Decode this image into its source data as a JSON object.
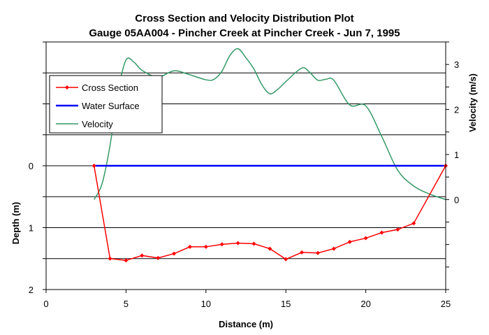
{
  "chart_data": {
    "type": "line",
    "title": "Cross Section and Velocity Distribution Plot",
    "subtitle": "Gauge 05AA004 - Pincher Creek at Pincher Creek - Jun 7, 1995",
    "xlabel": "Distance (m)",
    "ylabel": "Depth (m)",
    "y2label": "Velocity (m/s)",
    "xlim": [
      0,
      25
    ],
    "ylim": [
      2,
      -2
    ],
    "y2lim": [
      -2,
      3.5
    ],
    "x_ticks": [
      "0",
      "5",
      "10",
      "15",
      "20",
      "25"
    ],
    "y_ticks": [
      "0",
      "1",
      "2"
    ],
    "y2_ticks": [
      "0",
      "1",
      "2",
      "3"
    ],
    "grid": true,
    "legend_position": "top-left",
    "series": [
      {
        "name": "Cross Section",
        "color": "#ff0000",
        "axis": "left",
        "marker": "diamond",
        "x": [
          3,
          4,
          5,
          6,
          7,
          8,
          9,
          10,
          11,
          12,
          13,
          14,
          15,
          16,
          17,
          18,
          19,
          20,
          21,
          22,
          23,
          25
        ],
        "y": [
          0,
          1.5,
          1.53,
          1.45,
          1.49,
          1.42,
          1.31,
          1.31,
          1.27,
          1.25,
          1.26,
          1.34,
          1.51,
          1.4,
          1.41,
          1.34,
          1.23,
          1.17,
          1.08,
          1.03,
          0.93,
          0
        ]
      },
      {
        "name": "Water Surface",
        "color": "#0000ff",
        "axis": "left",
        "x": [
          3,
          25
        ],
        "y": [
          0,
          0
        ]
      },
      {
        "name": "Velocity",
        "color": "#339966",
        "axis": "right",
        "x": [
          3,
          3.5,
          4,
          4.5,
          5,
          5.5,
          6,
          7,
          8,
          9,
          10,
          10.5,
          11,
          11.5,
          12,
          12.5,
          13,
          13.5,
          14,
          14.5,
          15,
          16,
          16.5,
          17,
          17.5,
          18,
          19,
          20,
          21,
          22,
          23,
          24,
          25
        ],
        "y": [
          0,
          0.35,
          1.2,
          2.4,
          3.1,
          3.05,
          2.87,
          2.72,
          2.86,
          2.77,
          2.66,
          2.67,
          2.85,
          3.2,
          3.35,
          3.15,
          2.9,
          2.55,
          2.35,
          2.45,
          2.62,
          2.92,
          2.82,
          2.65,
          2.67,
          2.65,
          2.1,
          2.08,
          1.4,
          0.65,
          0.3,
          0.12,
          0
        ]
      }
    ]
  }
}
